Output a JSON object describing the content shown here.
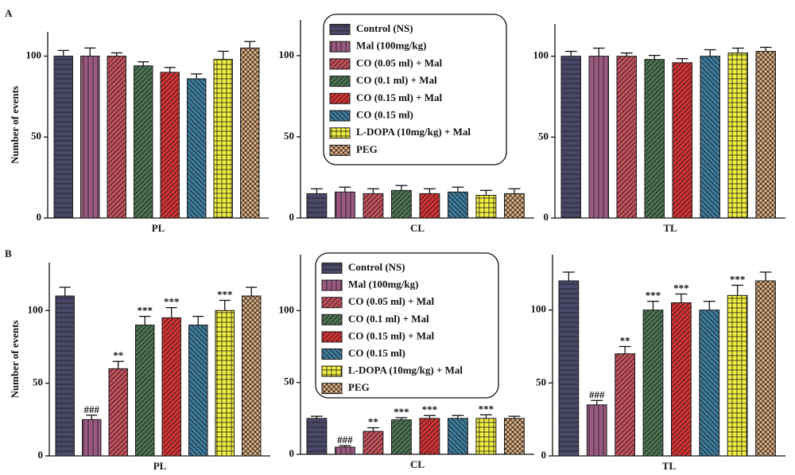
{
  "chart_data": [
    {
      "type": "bar",
      "panel": "A",
      "ylabel": "Number of events",
      "categories": [
        "PL"
      ],
      "ylim": [
        0,
        115
      ],
      "yticks": [
        0,
        50,
        100
      ],
      "series": [
        {
          "color": "#4a4868",
          "pattern": "horizontal",
          "values": [
            100
          ],
          "errors": [
            3.5
          ]
        },
        {
          "color": "#9a5a80",
          "pattern": "vertical",
          "values": [
            100
          ],
          "errors": [
            5
          ]
        },
        {
          "color": "#c4505c",
          "pattern": "diag",
          "values": [
            100
          ],
          "errors": [
            2
          ]
        },
        {
          "color": "#4b7352",
          "pattern": "diag",
          "values": [
            94
          ],
          "errors": [
            2.5
          ]
        },
        {
          "color": "#d43232",
          "pattern": "diag",
          "values": [
            90
          ],
          "errors": [
            3
          ]
        },
        {
          "color": "#3c7c9c",
          "pattern": "diag2",
          "values": [
            86
          ],
          "errors": [
            3
          ]
        },
        {
          "color": "#f2f040",
          "pattern": "grid",
          "values": [
            98
          ],
          "errors": [
            5
          ]
        },
        {
          "color": "#e2b282",
          "pattern": "cross",
          "values": [
            105
          ],
          "errors": [
            4
          ]
        }
      ]
    },
    {
      "type": "bar",
      "categories": [
        "CL"
      ],
      "ylim": [
        0,
        122
      ],
      "yticks": [
        0,
        50,
        100
      ],
      "legend": true,
      "series": [
        {
          "name": "Control (NS)",
          "color": "#4a4868",
          "pattern": "horizontal",
          "values": [
            15
          ],
          "errors": [
            3
          ]
        },
        {
          "name": "Mal (100mg/kg)",
          "color": "#9a5a80",
          "pattern": "vertical",
          "values": [
            16
          ],
          "errors": [
            3
          ]
        },
        {
          "name": "CO (0.05 ml) + Mal",
          "color": "#c4505c",
          "pattern": "diag",
          "values": [
            15
          ],
          "errors": [
            3
          ]
        },
        {
          "name": "CO (0.1 ml)  + Mal",
          "color": "#4b7352",
          "pattern": "diag",
          "values": [
            17
          ],
          "errors": [
            3
          ]
        },
        {
          "name": "CO (0.15 ml) + Mal",
          "color": "#d43232",
          "pattern": "diag",
          "values": [
            15
          ],
          "errors": [
            3
          ]
        },
        {
          "name": "CO (0.15 ml)",
          "color": "#3c7c9c",
          "pattern": "diag2",
          "values": [
            16
          ],
          "errors": [
            3
          ]
        },
        {
          "name": "L-DOPA (10mg/kg) + Mal",
          "color": "#f2f040",
          "pattern": "grid",
          "values": [
            14
          ],
          "errors": [
            3
          ]
        },
        {
          "name": "PEG",
          "color": "#e2b282",
          "pattern": "cross",
          "values": [
            15
          ],
          "errors": [
            3
          ]
        }
      ]
    },
    {
      "type": "bar",
      "categories": [
        "TL"
      ],
      "ylim": [
        0,
        120
      ],
      "yticks": [
        0,
        50,
        100
      ],
      "series": [
        {
          "color": "#4a4868",
          "pattern": "horizontal",
          "values": [
            100
          ],
          "errors": [
            3
          ]
        },
        {
          "color": "#9a5a80",
          "pattern": "vertical",
          "values": [
            100
          ],
          "errors": [
            5
          ]
        },
        {
          "color": "#c4505c",
          "pattern": "diag",
          "values": [
            100
          ],
          "errors": [
            2
          ]
        },
        {
          "color": "#4b7352",
          "pattern": "diag",
          "values": [
            98
          ],
          "errors": [
            2.5
          ]
        },
        {
          "color": "#d43232",
          "pattern": "diag",
          "values": [
            96
          ],
          "errors": [
            2.5
          ]
        },
        {
          "color": "#3c7c9c",
          "pattern": "diag2",
          "values": [
            100
          ],
          "errors": [
            4
          ]
        },
        {
          "color": "#f2f040",
          "pattern": "grid",
          "values": [
            102
          ],
          "errors": [
            3
          ]
        },
        {
          "color": "#e2b282",
          "pattern": "cross",
          "values": [
            103
          ],
          "errors": [
            2.5
          ]
        }
      ]
    },
    {
      "type": "bar",
      "panel": "B",
      "ylabel": "Number of events",
      "categories": [
        "PL"
      ],
      "ylim": [
        0,
        133
      ],
      "yticks": [
        0,
        50,
        100
      ],
      "series": [
        {
          "color": "#4a4868",
          "pattern": "horizontal",
          "values": [
            110
          ],
          "errors": [
            6
          ]
        },
        {
          "color": "#9a5a80",
          "pattern": "vertical",
          "values": [
            25
          ],
          "errors": [
            3
          ],
          "annotations": [
            "###"
          ]
        },
        {
          "color": "#c4505c",
          "pattern": "diag",
          "values": [
            60
          ],
          "errors": [
            5
          ],
          "annotations": [
            "**"
          ]
        },
        {
          "color": "#4b7352",
          "pattern": "diag",
          "values": [
            90
          ],
          "errors": [
            6
          ],
          "annotations": [
            "***"
          ]
        },
        {
          "color": "#d43232",
          "pattern": "diag",
          "values": [
            95
          ],
          "errors": [
            7
          ],
          "annotations": [
            "***"
          ]
        },
        {
          "color": "#3c7c9c",
          "pattern": "diag2",
          "values": [
            90
          ],
          "errors": [
            6
          ]
        },
        {
          "color": "#f2f040",
          "pattern": "grid",
          "values": [
            100
          ],
          "errors": [
            7
          ],
          "annotations": [
            "***"
          ]
        },
        {
          "color": "#e2b282",
          "pattern": "cross",
          "values": [
            110
          ],
          "errors": [
            6
          ]
        }
      ]
    },
    {
      "type": "bar",
      "categories": [
        "CL"
      ],
      "ylim": [
        0,
        139
      ],
      "yticks": [
        0,
        50,
        100
      ],
      "legend": true,
      "series": [
        {
          "name": "Control (NS)",
          "color": "#4a4868",
          "pattern": "horizontal",
          "values": [
            25
          ],
          "errors": [
            1.5
          ]
        },
        {
          "name": "Mal (100mg/kg)",
          "color": "#9a5a80",
          "pattern": "vertical",
          "values": [
            5
          ],
          "errors": [
            1
          ],
          "annotations": [
            "###"
          ]
        },
        {
          "name": "CO (0.05 ml) + Mal",
          "color": "#c4505c",
          "pattern": "diag",
          "values": [
            16
          ],
          "errors": [
            2.5
          ],
          "annotations": [
            "**"
          ]
        },
        {
          "name": "CO (0.1 ml) + Mal",
          "color": "#4b7352",
          "pattern": "diag",
          "values": [
            24
          ],
          "errors": [
            1.5
          ],
          "annotations": [
            "***"
          ]
        },
        {
          "name": "CO (0.15 ml) + Mal",
          "color": "#d43232",
          "pattern": "diag",
          "values": [
            25
          ],
          "errors": [
            2
          ],
          "annotations": [
            "***"
          ]
        },
        {
          "name": "CO (0.15 ml)",
          "color": "#3c7c9c",
          "pattern": "diag2",
          "values": [
            25
          ],
          "errors": [
            2
          ]
        },
        {
          "name": "L-DOPA (10mg/kg) + Mal",
          "color": "#f2f040",
          "pattern": "grid",
          "values": [
            25
          ],
          "errors": [
            2.5
          ],
          "annotations": [
            "***"
          ]
        },
        {
          "name": "PEG",
          "color": "#e2b282",
          "pattern": "cross",
          "values": [
            25
          ],
          "errors": [
            1.5
          ]
        }
      ]
    },
    {
      "type": "bar",
      "categories": [
        "TL"
      ],
      "ylim": [
        0,
        138
      ],
      "yticks": [
        0,
        50,
        100
      ],
      "series": [
        {
          "color": "#4a4868",
          "pattern": "horizontal",
          "values": [
            120
          ],
          "errors": [
            6
          ]
        },
        {
          "color": "#9a5a80",
          "pattern": "vertical",
          "values": [
            35
          ],
          "errors": [
            3
          ],
          "annotations": [
            "###"
          ]
        },
        {
          "color": "#c4505c",
          "pattern": "diag",
          "values": [
            70
          ],
          "errors": [
            5
          ],
          "annotations": [
            "**"
          ]
        },
        {
          "color": "#4b7352",
          "pattern": "diag",
          "values": [
            100
          ],
          "errors": [
            6
          ],
          "annotations": [
            "***"
          ]
        },
        {
          "color": "#d43232",
          "pattern": "diag",
          "values": [
            105
          ],
          "errors": [
            6
          ],
          "annotations": [
            "***"
          ]
        },
        {
          "color": "#3c7c9c",
          "pattern": "diag2",
          "values": [
            100
          ],
          "errors": [
            6
          ]
        },
        {
          "color": "#f2f040",
          "pattern": "grid",
          "values": [
            110
          ],
          "errors": [
            7
          ],
          "annotations": [
            "***"
          ]
        },
        {
          "color": "#e2b282",
          "pattern": "cross",
          "values": [
            120
          ],
          "errors": [
            6
          ]
        }
      ]
    }
  ]
}
